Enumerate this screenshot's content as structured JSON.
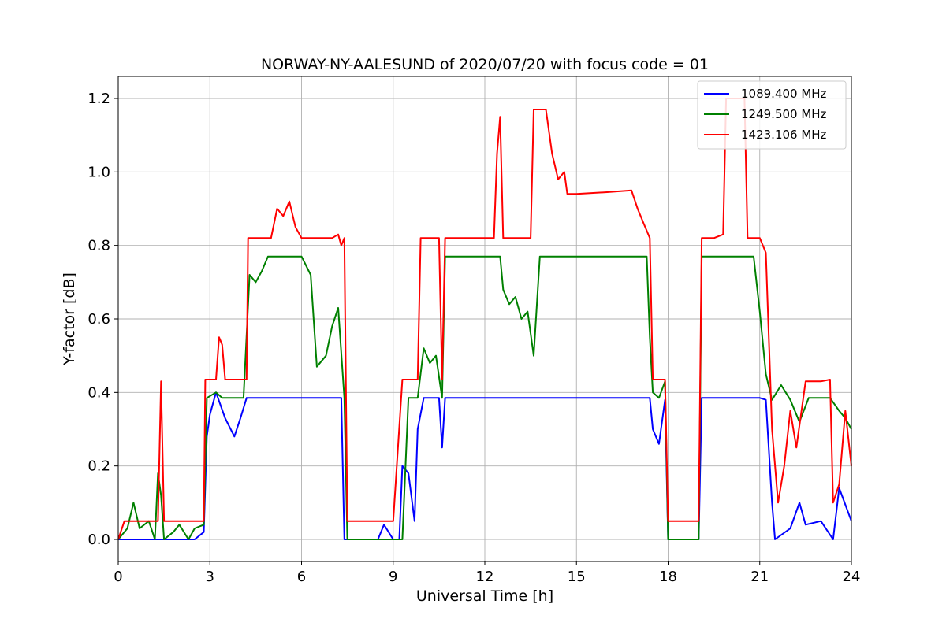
{
  "chart_data": {
    "type": "line",
    "title": "NORWAY-NY-AALESUND of 2020/07/20 with focus code = 01",
    "xlabel": "Universal Time [h]",
    "ylabel": "Y-factor [dB]",
    "xlim": [
      0,
      24
    ],
    "ylim": [
      -0.06,
      1.26
    ],
    "xticks": [
      0,
      3,
      6,
      9,
      12,
      15,
      18,
      21,
      24
    ],
    "xtick_labels": [
      "0",
      "3",
      "6",
      "9",
      "12",
      "15",
      "18",
      "21",
      "24"
    ],
    "yticks": [
      0.0,
      0.2,
      0.4,
      0.6,
      0.8,
      1.0,
      1.2
    ],
    "ytick_labels": [
      "0.0",
      "0.2",
      "0.4",
      "0.6",
      "0.8",
      "1.0",
      "1.2"
    ],
    "grid": true,
    "legend_position": "top-right",
    "series": [
      {
        "name": "1089.400 MHz",
        "color": "#0000ff",
        "x": [
          0,
          0.5,
          1.0,
          1.5,
          2.0,
          2.5,
          2.8,
          2.9,
          3.0,
          3.2,
          3.5,
          3.8,
          4.0,
          4.2,
          4.4,
          5.0,
          6.0,
          7.0,
          7.3,
          7.4,
          7.5,
          8.0,
          8.5,
          8.7,
          9.0,
          9.2,
          9.3,
          9.5,
          9.7,
          9.8,
          10.0,
          10.3,
          10.5,
          10.6,
          10.7,
          11.0,
          12.0,
          13.0,
          13.5,
          14.0,
          14.5,
          15.0,
          16.0,
          17.0,
          17.4,
          17.5,
          17.7,
          17.9,
          18.0,
          18.5,
          19.0,
          19.1,
          20.0,
          21.0,
          21.2,
          21.4,
          21.5,
          22.0,
          22.3,
          22.5,
          23.0,
          23.4,
          23.6,
          24.0
        ],
        "y": [
          0.0,
          0.0,
          0.0,
          0.0,
          0.0,
          0.0,
          0.02,
          0.28,
          0.34,
          0.4,
          0.33,
          0.28,
          0.33,
          0.385,
          0.385,
          0.385,
          0.385,
          0.385,
          0.385,
          0.0,
          0.0,
          0.0,
          0.0,
          0.04,
          0.0,
          0.0,
          0.2,
          0.18,
          0.05,
          0.3,
          0.385,
          0.385,
          0.385,
          0.25,
          0.385,
          0.385,
          0.385,
          0.385,
          0.385,
          0.385,
          0.385,
          0.385,
          0.385,
          0.385,
          0.385,
          0.3,
          0.26,
          0.38,
          0.0,
          0.0,
          0.0,
          0.385,
          0.385,
          0.385,
          0.38,
          0.1,
          0.0,
          0.03,
          0.1,
          0.04,
          0.05,
          0.0,
          0.14,
          0.05
        ]
      },
      {
        "name": "1249.500 MHz",
        "color": "#008000",
        "x": [
          0,
          0.3,
          0.5,
          0.7,
          1.0,
          1.2,
          1.3,
          1.4,
          1.5,
          1.8,
          2.0,
          2.3,
          2.5,
          2.8,
          2.9,
          3.2,
          3.4,
          3.8,
          4.1,
          4.3,
          4.5,
          4.7,
          4.9,
          5.0,
          5.3,
          6.0,
          6.3,
          6.5,
          6.8,
          7.0,
          7.2,
          7.4,
          7.5,
          8.0,
          9.0,
          9.3,
          9.5,
          9.8,
          10.0,
          10.2,
          10.4,
          10.6,
          10.7,
          11.0,
          12.0,
          12.5,
          12.6,
          12.8,
          13.0,
          13.2,
          13.4,
          13.6,
          13.8,
          14.0,
          15.0,
          16.0,
          17.0,
          17.3,
          17.4,
          17.5,
          17.7,
          17.9,
          18.0,
          18.5,
          19.0,
          19.1,
          19.3,
          19.5,
          20.0,
          20.5,
          20.8,
          21.0,
          21.2,
          21.4,
          21.7,
          22.0,
          22.3,
          22.6,
          23.0,
          23.3,
          23.6,
          23.8,
          24.0
        ],
        "y": [
          0.0,
          0.03,
          0.1,
          0.03,
          0.05,
          0.0,
          0.18,
          0.12,
          0.0,
          0.02,
          0.04,
          0.0,
          0.03,
          0.04,
          0.385,
          0.4,
          0.385,
          0.385,
          0.385,
          0.72,
          0.7,
          0.73,
          0.77,
          0.77,
          0.77,
          0.77,
          0.72,
          0.47,
          0.5,
          0.58,
          0.63,
          0.385,
          0.0,
          0.0,
          0.0,
          0.0,
          0.385,
          0.385,
          0.52,
          0.48,
          0.5,
          0.385,
          0.77,
          0.77,
          0.77,
          0.77,
          0.68,
          0.64,
          0.66,
          0.6,
          0.62,
          0.5,
          0.77,
          0.77,
          0.77,
          0.77,
          0.77,
          0.77,
          0.55,
          0.4,
          0.385,
          0.43,
          0.0,
          0.0,
          0.0,
          0.77,
          0.77,
          0.77,
          0.77,
          0.77,
          0.77,
          0.62,
          0.45,
          0.38,
          0.42,
          0.38,
          0.32,
          0.385,
          0.385,
          0.385,
          0.35,
          0.33,
          0.3
        ]
      },
      {
        "name": "1423.106 MHz",
        "color": "#ff0000",
        "x": [
          0,
          0.2,
          1.0,
          1.3,
          1.4,
          1.5,
          1.6,
          2.0,
          2.8,
          2.85,
          3.2,
          3.3,
          3.4,
          3.5,
          3.6,
          4.2,
          4.25,
          5.0,
          5.2,
          5.4,
          5.6,
          5.8,
          6.0,
          7.0,
          7.2,
          7.3,
          7.4,
          7.5,
          8.0,
          9.0,
          9.3,
          9.5,
          9.8,
          9.9,
          10.5,
          10.6,
          10.7,
          12.0,
          12.3,
          12.4,
          12.5,
          12.6,
          12.7,
          13.0,
          13.5,
          13.6,
          13.7,
          14.0,
          14.2,
          14.4,
          14.6,
          14.7,
          15.0,
          16.0,
          16.8,
          17.0,
          17.2,
          17.4,
          17.5,
          17.9,
          18.0,
          18.5,
          19.0,
          19.1,
          19.5,
          19.8,
          19.9,
          20.5,
          20.6,
          21.0,
          21.2,
          21.4,
          21.6,
          21.8,
          22.0,
          22.2,
          22.5,
          23.0,
          23.3,
          23.4,
          23.6,
          23.8,
          24.0
        ],
        "y": [
          0.0,
          0.05,
          0.05,
          0.05,
          0.43,
          0.05,
          0.05,
          0.05,
          0.05,
          0.435,
          0.435,
          0.55,
          0.53,
          0.435,
          0.435,
          0.435,
          0.82,
          0.82,
          0.9,
          0.88,
          0.92,
          0.85,
          0.82,
          0.82,
          0.83,
          0.8,
          0.82,
          0.05,
          0.05,
          0.05,
          0.435,
          0.435,
          0.435,
          0.82,
          0.82,
          0.435,
          0.82,
          0.82,
          0.82,
          1.05,
          1.15,
          0.82,
          0.82,
          0.82,
          0.82,
          1.17,
          1.17,
          1.17,
          1.05,
          0.98,
          1.0,
          0.94,
          0.94,
          0.945,
          0.95,
          0.9,
          0.86,
          0.82,
          0.435,
          0.435,
          0.05,
          0.05,
          0.05,
          0.82,
          0.82,
          0.83,
          1.2,
          1.2,
          0.82,
          0.82,
          0.78,
          0.3,
          0.1,
          0.2,
          0.35,
          0.25,
          0.43,
          0.43,
          0.435,
          0.1,
          0.15,
          0.35,
          0.2
        ]
      }
    ]
  }
}
